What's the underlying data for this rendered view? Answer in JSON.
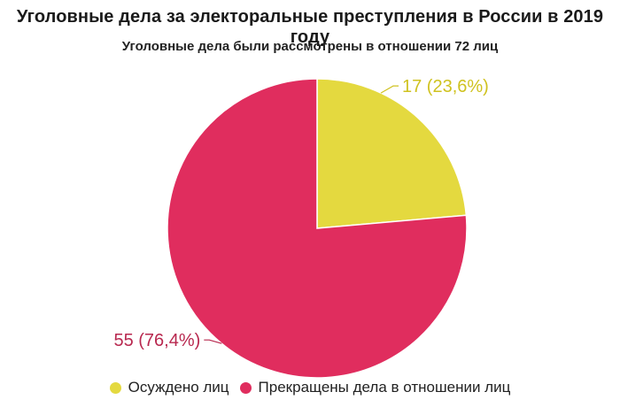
{
  "chart_data": {
    "type": "pie",
    "title": "Уголовные дела за электоральные преступления в России в 2019 году",
    "subtitle": "Уголовные дела были рассмотрены в отношении 72 лиц",
    "slices": [
      {
        "name": "Осуждено лиц",
        "value": 17,
        "percent": 23.6,
        "label": "17 (23,6%)",
        "color": "#e4d93f",
        "label_color": "#cfc21f"
      },
      {
        "name": "Прекращены дела в отношении лиц",
        "value": 55,
        "percent": 76.4,
        "label": "55 (76,4%)",
        "color": "#e02d5e",
        "label_color": "#b8284f"
      }
    ],
    "start_angle": "12 o'clock",
    "direction": "clockwise",
    "legend_position": "bottom"
  }
}
